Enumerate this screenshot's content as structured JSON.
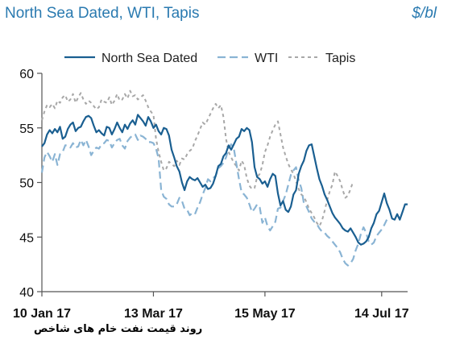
{
  "header": {
    "title": "North Sea Dated, WTI, Tapis",
    "unit": "$/bl"
  },
  "caption": "روند قیمت نفت خام های شاخص",
  "colors": {
    "north_sea": "#1a5f91",
    "wti": "#8ab4d4",
    "tapis": "#a8a8a8",
    "axis": "#555555"
  },
  "chart_data": {
    "type": "line",
    "title": "North Sea Dated, WTI, Tapis",
    "ylabel": "$/bl",
    "ylim": [
      40,
      60
    ],
    "yticks": [
      40,
      45,
      50,
      55,
      60
    ],
    "x_tick_labels": [
      "10 Jan 17",
      "13 Mar 17",
      "15 May 17",
      "14 Jul 17"
    ],
    "x_tick_index": [
      0,
      43,
      86,
      131
    ],
    "legend_position": "top",
    "series": [
      {
        "name": "North Sea Dated",
        "style": "solid",
        "values": [
          53.3,
          53.6,
          54.4,
          54.8,
          54.5,
          54.9,
          54.6,
          55.1,
          54.0,
          54.2,
          54.9,
          55.3,
          55.5,
          54.7,
          55.0,
          55.1,
          55.6,
          56.0,
          56.1,
          55.9,
          55.2,
          54.6,
          54.8,
          54.5,
          54.3,
          55.1,
          55.0,
          54.4,
          54.9,
          55.5,
          55.0,
          54.6,
          55.3,
          54.9,
          55.4,
          55.7,
          55.3,
          56.2,
          55.9,
          55.6,
          55.2,
          56.0,
          55.6,
          55.0,
          55.3,
          54.7,
          54.4,
          55.0,
          54.9,
          54.3,
          53.0,
          52.3,
          51.5,
          51.0,
          50.0,
          49.3,
          50.1,
          50.5,
          50.3,
          50.2,
          50.4,
          50.0,
          49.6,
          49.8,
          49.4,
          49.5,
          49.9,
          50.6,
          51.5,
          51.7,
          52.4,
          52.7,
          53.4,
          53.0,
          53.5,
          54.0,
          54.2,
          54.9,
          54.7,
          55.0,
          54.8,
          53.7,
          51.4,
          50.5,
          50.3,
          49.9,
          50.1,
          49.6,
          50.3,
          50.8,
          50.6,
          49.0,
          47.9,
          48.3,
          47.5,
          47.3,
          47.8,
          48.9,
          49.3,
          50.8,
          51.5,
          52.0,
          52.9,
          53.4,
          53.5,
          52.4,
          51.3,
          50.3,
          49.7,
          48.9,
          48.4,
          47.8,
          47.2,
          46.8,
          46.5,
          46.2,
          45.8,
          45.6,
          45.5,
          45.8,
          45.4,
          45.0,
          44.5,
          44.3,
          44.4,
          44.6,
          45.0,
          45.8,
          46.3,
          47.1,
          47.4,
          48.2,
          49.0,
          48.1,
          47.5,
          46.7,
          46.6,
          47.1,
          46.6,
          47.3,
          48.0,
          48.0
        ]
      },
      {
        "name": "WTI",
        "style": "dashed",
        "values": [
          50.9,
          52.3,
          52.8,
          52.4,
          51.9,
          52.6,
          51.6,
          52.6,
          52.8,
          53.4,
          53.4,
          53.2,
          53.6,
          53.2,
          53.3,
          53.9,
          53.4,
          53.9,
          53.3,
          52.5,
          52.9,
          53.2,
          53.1,
          53.5,
          53.6,
          53.9,
          53.8,
          53.2,
          53.6,
          53.9,
          54.0,
          53.4,
          53.1,
          53.8,
          54.1,
          54.3,
          54.4,
          53.9,
          54.3,
          54.2,
          54.0,
          53.7,
          53.7,
          53.6,
          53.1,
          52.2,
          49.3,
          48.7,
          48.5,
          48.0,
          47.8,
          47.8,
          48.0,
          48.6,
          48.3,
          47.6,
          47.5,
          47.0,
          47.2,
          47.1,
          47.7,
          48.2,
          48.9,
          49.5,
          50.3,
          50.1,
          50.4,
          50.6,
          51.3,
          51.5,
          51.8,
          52.3,
          53.1,
          53.5,
          53.1,
          51.7,
          50.3,
          49.1,
          48.9,
          48.6,
          48.0,
          47.3,
          47.6,
          48.0,
          47.7,
          46.3,
          46.8,
          46.0,
          45.6,
          46.0,
          46.4,
          47.6,
          47.7,
          48.3,
          48.9,
          49.8,
          50.7,
          51.1,
          51.4,
          50.2,
          49.5,
          48.1,
          47.8,
          47.3,
          46.7,
          46.4,
          46.2,
          45.8,
          45.5,
          45.4,
          45.1,
          44.9,
          44.6,
          44.3,
          44.0,
          43.6,
          43.0,
          42.6,
          42.4,
          42.6,
          43.0,
          43.8,
          44.4,
          45.3,
          45.9,
          45.4,
          44.6,
          44.3,
          44.5,
          45.1,
          45.4,
          45.7,
          46.1,
          46.6
        ]
      },
      {
        "name": "Tapis",
        "style": "dashed",
        "values": [
          55.7,
          56.5,
          57.1,
          56.9,
          57.2,
          56.8,
          57.5,
          57.3,
          57.8,
          58.0,
          57.4,
          57.6,
          58.1,
          57.3,
          57.8,
          58.2,
          57.6,
          57.2,
          57.5,
          57.3,
          57.0,
          56.7,
          56.9,
          57.6,
          57.4,
          57.3,
          57.8,
          57.1,
          57.5,
          58.1,
          57.5,
          57.6,
          58.1,
          57.7,
          58.4,
          57.9,
          58.0,
          57.6,
          57.8,
          58.0,
          57.5,
          56.9,
          56.5,
          56.2,
          54.0,
          52.8,
          51.9,
          51.1,
          51.3,
          51.9,
          51.7,
          51.5,
          52.0,
          51.6,
          52.2,
          52.1,
          52.6,
          52.9,
          53.1,
          53.8,
          54.3,
          54.9,
          55.5,
          55.3,
          55.8,
          56.3,
          56.8,
          57.2,
          56.8,
          57.1,
          56.0,
          54.0,
          52.8,
          52.3,
          51.8,
          51.5,
          51.1,
          52.0,
          51.6,
          50.4,
          49.7,
          49.4,
          49.5,
          50.5,
          50.8,
          51.6,
          52.8,
          53.4,
          54.2,
          54.8,
          55.3,
          55.6,
          54.4,
          53.2,
          52.4,
          51.7,
          51.2,
          50.8,
          50.1,
          49.4,
          48.9,
          48.7,
          48.2,
          47.6,
          47.2,
          46.8,
          46.3,
          46.0,
          46.5,
          47.4,
          48.4,
          49.2,
          49.8,
          51.0,
          50.6,
          50.1,
          49.3,
          48.6,
          48.8,
          49.4,
          50.1
        ]
      }
    ]
  }
}
